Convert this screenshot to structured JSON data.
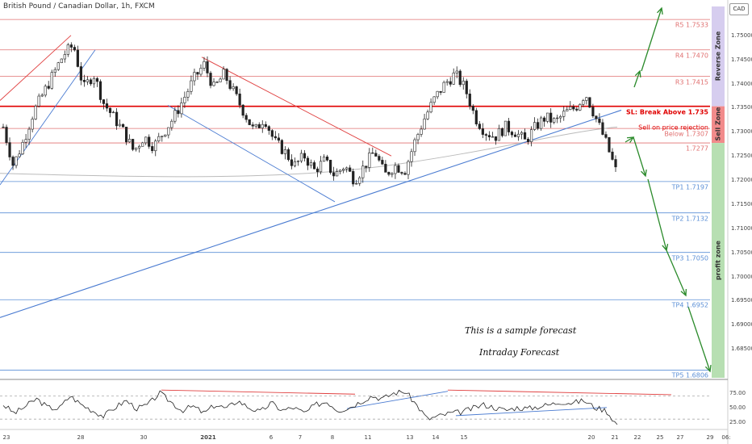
{
  "header": {
    "symbol_title": "British Pound / Canadian Dollar, 1h, FXCM",
    "currency_badge": "CAD"
  },
  "chart_data": {
    "type": "candlestick",
    "title": "British Pound / Canadian Dollar, 1h, FXCM",
    "ylim": [
      1.679,
      1.756
    ],
    "y_ticks": [
      "1.75000",
      "1.74500",
      "1.74000",
      "1.73500",
      "1.73000",
      "1.72500",
      "1.72000",
      "1.71500",
      "1.71000",
      "1.70500",
      "1.70000",
      "1.69500",
      "1.69000",
      "1.68500"
    ],
    "y_tick_values": [
      1.75,
      1.745,
      1.74,
      1.735,
      1.73,
      1.725,
      1.72,
      1.715,
      1.71,
      1.705,
      1.7,
      1.695,
      1.69,
      1.685
    ],
    "x_ticks": [
      "23",
      "28",
      "30",
      "2021",
      "6",
      "7",
      "8",
      "11",
      "13",
      "14",
      "15",
      "20",
      "21",
      "22",
      "25",
      "27",
      "29",
      "06:"
    ],
    "price_path": [
      1.731,
      1.723,
      1.728,
      1.734,
      1.738,
      1.742,
      1.746,
      1.748,
      1.739,
      1.742,
      1.736,
      1.733,
      1.73,
      1.726,
      1.729,
      1.727,
      1.73,
      1.733,
      1.737,
      1.741,
      1.744,
      1.739,
      1.742,
      1.738,
      1.734,
      1.73,
      1.733,
      1.728,
      1.726,
      1.723,
      1.725,
      1.722,
      1.724,
      1.721,
      1.723,
      1.72,
      1.723,
      1.726,
      1.721,
      1.723,
      1.722,
      1.728,
      1.733,
      1.737,
      1.74,
      1.742,
      1.739,
      1.733,
      1.73,
      1.729,
      1.731,
      1.73,
      1.728,
      1.731,
      1.733,
      1.732,
      1.734,
      1.735,
      1.738,
      1.733,
      1.728,
      1.722
    ],
    "levels": [
      {
        "label": "R5 1.7533",
        "value": 1.7533,
        "color": "#e07070"
      },
      {
        "label": "R4 1.7470",
        "value": 1.747,
        "color": "#e07070"
      },
      {
        "label": "R3 1.7415",
        "value": 1.7415,
        "color": "#e07070"
      },
      {
        "label": "SL: Break Above 1.735",
        "value": 1.7353,
        "color": "#e00000"
      },
      {
        "label": "Sell  on price rejection",
        "value": 1.732,
        "color": "#e00000"
      },
      {
        "label": "Below 1.7307",
        "value": 1.7307,
        "color": "#e07070"
      },
      {
        "label": "1.7277",
        "value": 1.7277,
        "color": "#e07070"
      },
      {
        "label": "TP1 1.7197",
        "value": 1.7197,
        "color": "#5b8fd6"
      },
      {
        "label": "TP2 1.7132",
        "value": 1.7132,
        "color": "#5b8fd6"
      },
      {
        "label": "TP3 1.7050",
        "value": 1.705,
        "color": "#5b8fd6"
      },
      {
        "label": "TP4 1.6952",
        "value": 1.6952,
        "color": "#5b8fd6"
      },
      {
        "label": "TP5 1.6806",
        "value": 1.6806,
        "color": "#5b8fd6"
      }
    ],
    "zones": [
      {
        "label": "Reverse Zone",
        "from": 1.7353,
        "to": 1.756,
        "color": "#d6cdef"
      },
      {
        "label": "Sell Zone",
        "from": 1.7277,
        "to": 1.7353,
        "color": "#f28b8b"
      },
      {
        "label": "profit zone",
        "from": 1.679,
        "to": 1.7277,
        "color": "#b7dfb2"
      }
    ],
    "rsi": {
      "ticks": [
        "75.00",
        "50.00",
        "25.00"
      ],
      "tick_values": [
        75,
        50,
        25
      ],
      "overbought": 70,
      "oversold": 30,
      "path": [
        55,
        40,
        52,
        65,
        50,
        48,
        70,
        55,
        45,
        35,
        50,
        62,
        48,
        55,
        75,
        60,
        45,
        52,
        40,
        55,
        48,
        62,
        50,
        42,
        58,
        45,
        50,
        40,
        55,
        60,
        45,
        50,
        60,
        70,
        65,
        75,
        78,
        55,
        30,
        35,
        40,
        42,
        48,
        55,
        50,
        45,
        50,
        48,
        52,
        55,
        60,
        58,
        62,
        50,
        45,
        20
      ]
    },
    "notes": [
      "This is a sample forecast",
      "Intraday Forecast"
    ]
  },
  "colors": {
    "candle": "#222222",
    "support_line": "#4a7bd1",
    "resistance_line": "#e04040",
    "arrow": "#2a8a2a",
    "ma_line": "#bbbbbb"
  }
}
